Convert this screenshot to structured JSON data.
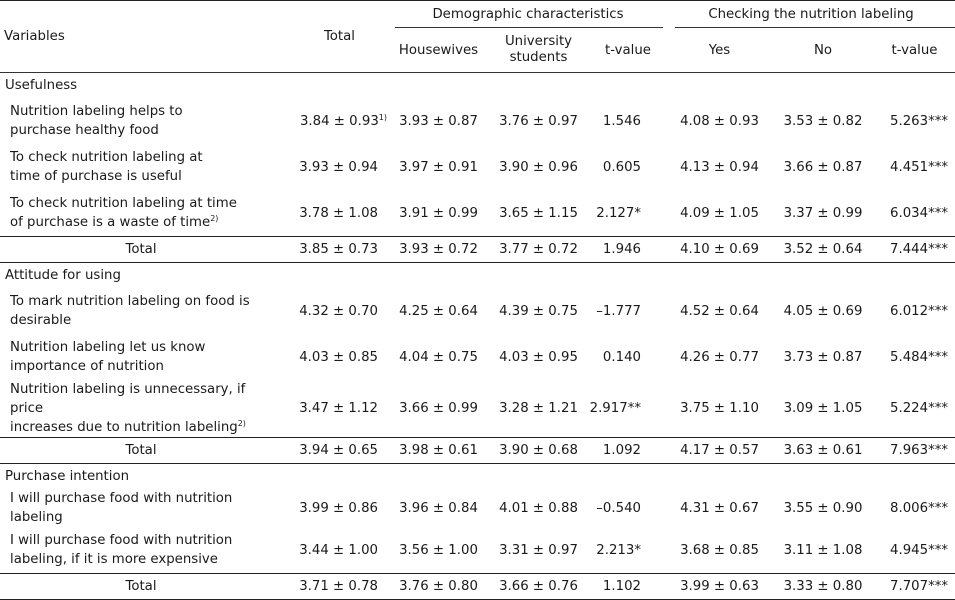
{
  "header": {
    "variables": "Variables",
    "total": "Total",
    "demographic": "Demographic characteristics",
    "checking": "Checking the nutrition labeling",
    "housewives": "Housewives",
    "students_line1": "University",
    "students_line2": "students",
    "tvalue": "t-value",
    "yes": "Yes",
    "no": "No",
    "tvalue2": "t-value"
  },
  "sections": [
    {
      "title": "Usefulness",
      "rows": [
        {
          "line1": "Nutrition labeling helps to",
          "line2": "purchase healthy food",
          "sup": "",
          "total": "3.84 ± 0.93",
          "total_sup": "1)",
          "housewives": "3.93 ± 0.87",
          "students": "3.76 ± 0.97",
          "t": "1.546",
          "yes": "4.08 ± 0.93",
          "no": "3.53 ± 0.82",
          "t2": "5.263***"
        },
        {
          "line1": "To check nutrition labeling at",
          "line2": "time of purchase is useful",
          "sup": "",
          "total": "3.93 ± 0.94",
          "total_sup": "",
          "housewives": "3.97 ± 0.91",
          "students": "3.90 ± 0.96",
          "t": "0.605",
          "yes": "4.13 ± 0.94",
          "no": "3.66 ± 0.87",
          "t2": "4.451***"
        },
        {
          "line1": "To check nutrition labeling at time",
          "line2": "of purchase is a waste of time",
          "sup": "2)",
          "total": "3.78 ± 1.08",
          "total_sup": "",
          "housewives": "3.91 ± 0.99",
          "students": "3.65 ± 1.15",
          "t": "2.127*",
          "yes": "4.09 ± 1.05",
          "no": "3.37 ± 0.99",
          "t2": "6.034***"
        }
      ],
      "total_row": {
        "label": "Total",
        "total": "3.85 ± 0.73",
        "housewives": "3.93 ± 0.72",
        "students": "3.77 ± 0.72",
        "t": "1.946",
        "yes": "4.10 ± 0.69",
        "no": "3.52 ± 0.64",
        "t2": "7.444***"
      }
    },
    {
      "title": "Attitude for using",
      "rows": [
        {
          "line1": "To mark nutrition labeling on food is",
          "line2": "desirable",
          "sup": "",
          "total": "4.32 ± 0.70",
          "total_sup": "",
          "housewives": "4.25 ± 0.64",
          "students": "4.39 ± 0.75",
          "t": "–1.777",
          "yes": "4.52 ± 0.64",
          "no": "4.05 ± 0.69",
          "t2": "6.012***"
        },
        {
          "line1": "Nutrition labeling let us know",
          "line2": "importance of nutrition",
          "sup": "",
          "total": "4.03 ± 0.85",
          "total_sup": "",
          "housewives": "4.04 ± 0.75",
          "students": "4.03 ± 0.95",
          "t": "0.140",
          "yes": "4.26 ± 0.77",
          "no": "3.73 ± 0.87",
          "t2": "5.484***"
        },
        {
          "line1": "Nutrition labeling is unnecessary, if price",
          "line2": "increases due to nutrition labeling",
          "sup": "2)",
          "total": "3.47 ± 1.12",
          "total_sup": "",
          "housewives": "3.66 ± 0.99",
          "students": "3.28 ± 1.21",
          "t": "2.917**",
          "yes": "3.75 ± 1.10",
          "no": "3.09 ± 1.05",
          "t2": "5.224***"
        }
      ],
      "total_row": {
        "label": "Total",
        "total": "3.94 ± 0.65",
        "housewives": "3.98 ± 0.61",
        "students": "3.90 ± 0.68",
        "t": "1.092",
        "yes": "4.17 ± 0.57",
        "no": "3.63 ± 0.61",
        "t2": "7.963***"
      }
    },
    {
      "title": "Purchase intention",
      "rows": [
        {
          "line1": "I will purchase food with nutrition labeling",
          "line2": "",
          "sup": "",
          "total": "3.99 ± 0.86",
          "total_sup": "",
          "housewives": "3.96 ± 0.84",
          "students": "4.01 ± 0.88",
          "t": "–0.540",
          "yes": "4.31 ± 0.67",
          "no": "3.55 ± 0.90",
          "t2": "8.006***"
        },
        {
          "line1": "I will purchase food with nutrition",
          "line2": "labeling, if it is more expensive",
          "sup": "",
          "total": "3.44 ± 1.00",
          "total_sup": "",
          "housewives": "3.56 ± 1.00",
          "students": "3.31 ± 0.97",
          "t": "2.213*",
          "yes": "3.68 ± 0.85",
          "no": "3.11 ± 1.08",
          "t2": "4.945***"
        }
      ],
      "total_row": {
        "label": "Total",
        "total": "3.71 ± 0.78",
        "housewives": "3.76 ± 0.80",
        "students": "3.66 ± 0.76",
        "t": "1.102",
        "yes": "3.99 ± 0.63",
        "no": "3.33 ± 0.80",
        "t2": "7.707***"
      }
    }
  ]
}
